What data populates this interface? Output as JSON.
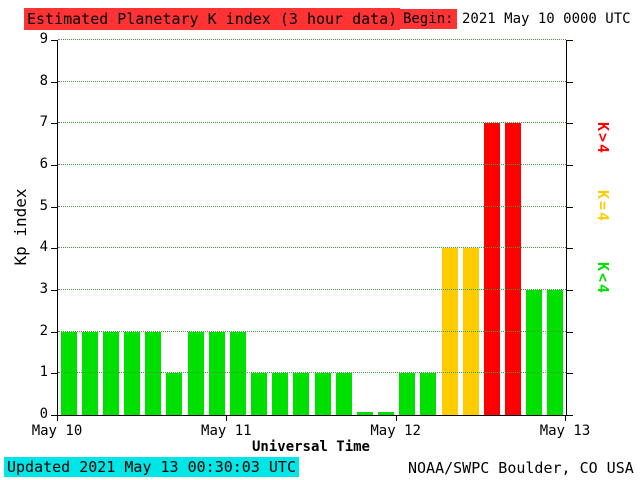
{
  "header": {
    "title": "Estimated Planetary K index (3 hour data)",
    "begin_label": "Begin:",
    "begin_value": "2021 May 10 0000 UTC"
  },
  "footer": {
    "updated": "Updated 2021 May 13 00:30:03 UTC",
    "credit": "NOAA/SWPC Boulder, CO USA"
  },
  "chart_data": {
    "type": "bar",
    "title": "Estimated Planetary K index (3 hour data)",
    "xlabel": "Universal Time",
    "ylabel": "Kp index",
    "ylim": [
      0,
      9
    ],
    "yticks": [
      0,
      1,
      2,
      3,
      4,
      5,
      6,
      7,
      8,
      9
    ],
    "x_tick_labels": [
      "May 10",
      "May 11",
      "May 12",
      "May 13"
    ],
    "bar_interval_hours": 3,
    "grid": "horizontal dotted",
    "days": [
      {
        "date": "May 10",
        "values": [
          2,
          2,
          2,
          2,
          2,
          1,
          2,
          2
        ]
      },
      {
        "date": "May 11",
        "values": [
          2,
          1,
          1,
          1,
          1,
          1,
          0,
          0
        ]
      },
      {
        "date": "May 12",
        "values": [
          1,
          1,
          4,
          4,
          7,
          7,
          3,
          3
        ]
      }
    ],
    "legend": {
      "high": "K>4",
      "mid": "K=4",
      "low": "K<4"
    },
    "colors": {
      "low": "#00e000",
      "mid": "#ffcc00",
      "high": "#ff0000",
      "title_bg": "#ff3333",
      "updated_bg": "#00e5e5",
      "grid": "#3f9f3f"
    }
  }
}
